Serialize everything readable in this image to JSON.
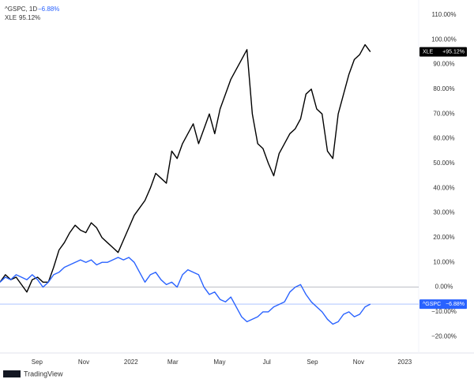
{
  "chart_data": {
    "type": "line",
    "legend_header": "^GSPC, 1D",
    "legend_change": "−6.88%",
    "legend_second": "95.12%",
    "brand": "TradingView",
    "x": [
      0,
      1,
      2,
      3,
      4,
      5,
      6,
      7,
      8,
      9,
      10,
      11,
      12,
      13,
      14,
      15,
      16,
      17,
      18,
      19,
      20,
      21,
      22,
      23,
      24,
      25,
      26,
      27,
      28,
      29,
      30,
      31,
      32,
      33,
      34,
      35,
      36,
      37,
      38,
      39,
      40,
      41,
      42,
      43,
      44,
      45,
      46,
      47,
      48,
      49,
      50,
      51,
      52,
      53,
      54,
      55,
      56,
      57,
      58,
      59,
      60,
      61,
      62,
      63,
      64,
      65,
      66,
      67,
      68,
      69
    ],
    "series": [
      {
        "name": "XLE",
        "color": "#000000",
        "last_label": "+95.12%",
        "values": [
          2,
          5,
          3,
          4,
          1,
          -2,
          3,
          4,
          2,
          2,
          8,
          15,
          18,
          22,
          25,
          23,
          22,
          26,
          24,
          20,
          18,
          16,
          14,
          19,
          24,
          29,
          32,
          35,
          40,
          46,
          44,
          42,
          55,
          52,
          58,
          62,
          66,
          58,
          64,
          70,
          62,
          72,
          78,
          84,
          88,
          92,
          96,
          70,
          58,
          56,
          50,
          45,
          54,
          58,
          62,
          64,
          68,
          78,
          80,
          72,
          70,
          55,
          52,
          70,
          78,
          86,
          92,
          94,
          98,
          95.12
        ]
      },
      {
        "name": "^GSPC",
        "color": "#2962ff",
        "last_label": "−6.88%",
        "values": [
          2,
          4,
          3,
          5,
          4,
          3,
          5,
          3,
          0,
          2,
          5,
          6,
          8,
          9,
          10,
          11,
          10,
          11,
          9,
          10,
          10,
          11,
          12,
          11,
          12,
          10,
          6,
          2,
          5,
          6,
          3,
          1,
          2,
          0,
          5,
          7,
          6,
          5,
          0,
          -3,
          -2,
          -5,
          -6,
          -4,
          -8,
          -12,
          -14,
          -13,
          -12,
          -10,
          -10,
          -8,
          -7,
          -6,
          -2,
          0,
          1,
          -3,
          -6,
          -8,
          -10,
          -13,
          -15,
          -14,
          -11,
          -10,
          -12,
          -11,
          -8,
          -6.88
        ]
      }
    ],
    "xlim": [
      0,
      78
    ],
    "xticks": [
      {
        "value": 6.9,
        "label": "Sep"
      },
      {
        "value": 15.6,
        "label": "Nov"
      },
      {
        "value": 24.4,
        "label": "2022"
      },
      {
        "value": 32.2,
        "label": "Mar"
      },
      {
        "value": 40.9,
        "label": "May"
      },
      {
        "value": 49.7,
        "label": "Jul"
      },
      {
        "value": 58.2,
        "label": "Sep"
      },
      {
        "value": 66.8,
        "label": "Nov"
      },
      {
        "value": 75.4,
        "label": "2023"
      }
    ],
    "ylim": [
      -26,
      113.5
    ],
    "yticks": [
      {
        "value": 110,
        "label": "110.00%"
      },
      {
        "value": 100,
        "label": "100.00%"
      },
      {
        "value": 90,
        "label": "90.00%"
      },
      {
        "value": 80,
        "label": "80.00%"
      },
      {
        "value": 70,
        "label": "70.00%"
      },
      {
        "value": 60,
        "label": "60.00%"
      },
      {
        "value": 50,
        "label": "50.00%"
      },
      {
        "value": 40,
        "label": "40.00%"
      },
      {
        "value": 30,
        "label": "30.00%"
      },
      {
        "value": 20,
        "label": "20.00%"
      },
      {
        "value": 10,
        "label": "10.00%"
      },
      {
        "value": 0,
        "label": "0.00%"
      },
      {
        "value": -10,
        "label": "−10.00%"
      },
      {
        "value": -20,
        "label": "−20.00%"
      }
    ],
    "grid": false
  }
}
